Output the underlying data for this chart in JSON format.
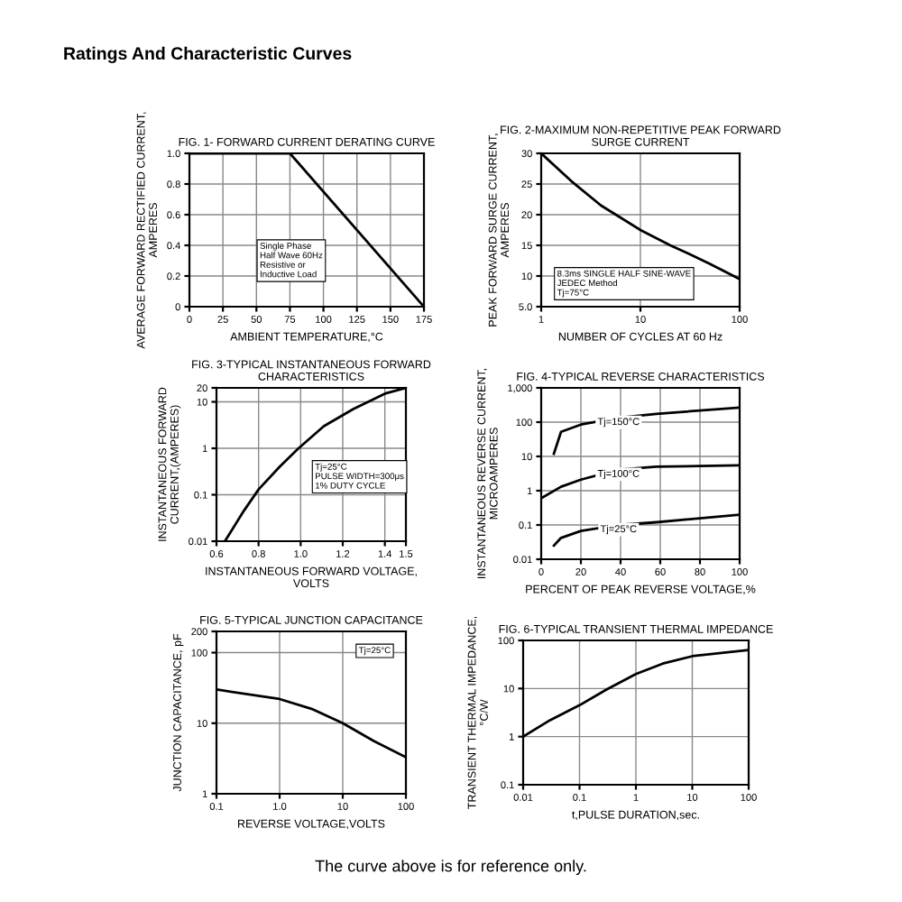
{
  "chart_data": [
    {
      "type": "other",
      "title": "Ratings And Characteristic Curves"
    },
    {
      "type": "line",
      "title": "FIG. 1- FORWARD CURRENT DERATING CURVE",
      "xlabel": "AMBIENT TEMPERATURE,°C",
      "ylabel": "AVERAGE FORWARD RECTIFIED CURRENT,\nAMPERES",
      "series": [
        {
          "color": "#000000",
          "x": [
            0,
            75,
            175
          ],
          "values": [
            1.0,
            1.0,
            0
          ]
        }
      ],
      "xlim": [
        0,
        175
      ],
      "ylim": [
        0,
        1.0
      ],
      "xticks": [
        0,
        25,
        50,
        75,
        100,
        125,
        150,
        175
      ],
      "yticks": [
        0,
        0.2,
        0.4,
        0.6,
        0.8,
        {
          "value": 1,
          "label": "1.0"
        }
      ],
      "grid": true,
      "line_style": "solid",
      "annotations": [
        "Single Phase\nHalf Wave 60Hz\nResistive or\nInductive Load"
      ]
    },
    {
      "type": "line",
      "title": "FIG. 2-MAXIMUM NON-REPETITIVE PEAK FORWARD\nSURGE CURRENT",
      "xlabel": "NUMBER OF CYCLES AT 60 Hz",
      "ylabel": "PEAK FORWARD SURGE CURRENT,\nAMPERES",
      "series": [
        {
          "color": "#000000",
          "x": [
            1,
            2,
            4,
            10,
            20,
            32,
            50,
            100
          ],
          "values": [
            30,
            25.5,
            21.5,
            17.5,
            15,
            13.5,
            12,
            9.5
          ]
        }
      ],
      "log": "x",
      "xlim": [
        1,
        100
      ],
      "ylim": [
        5.0,
        30
      ],
      "xticks": [
        1,
        10,
        100
      ],
      "yticks": [
        {
          "value": 5,
          "label": "5.0"
        },
        10,
        15,
        20,
        25,
        30
      ],
      "grid": true,
      "line_style": "solid",
      "annotations": [
        "8.3ms SINGLE HALF SINE-WAVE\nJEDEC Method\nTj=75°C"
      ]
    },
    {
      "type": "line",
      "title": "FIG. 3-TYPICAL INSTANTANEOUS FORWARD\nCHARACTERISTICS",
      "xlabel": "INSTANTANEOUS FORWARD VOLTAGE,\nVOLTS",
      "ylabel": "INSTANTANEOUS FORWARD\nCURRENT,(AMPERES)",
      "series": [
        {
          "color": "#000000",
          "x": [
            0.64,
            0.73,
            0.8,
            0.9,
            0.99,
            1.11,
            1.25,
            1.4,
            1.5
          ],
          "values": [
            0.01,
            0.045,
            0.13,
            0.4,
            1.0,
            3,
            7,
            15,
            20
          ]
        }
      ],
      "log": "y",
      "xlim": [
        0.6,
        1.5
      ],
      "ylim": [
        0.01,
        20
      ],
      "xticks": [
        0.6,
        0.8,
        {
          "value": 1,
          "label": "1.0"
        },
        1.2,
        1.4,
        1.5
      ],
      "yticks": [
        0.01,
        0.1,
        1,
        10,
        20
      ],
      "grid": true,
      "line_style": "solid",
      "annotations": [
        "Tj=25°C\nPULSE WIDTH=300μs\n1% DUTY CYCLE"
      ]
    },
    {
      "type": "line",
      "title": "FIG. 4-TYPICAL REVERSE CHARACTERISTICS",
      "xlabel": "PERCENT OF PEAK REVERSE VOLTAGE,%",
      "ylabel": "INSTANTANEOUS REVERSE CURRENT,\nMICROAMPERES",
      "series": [
        {
          "name": "Tj=150°C",
          "color": "#000000",
          "x": [
            6.4,
            10,
            20,
            39,
            58,
            100
          ],
          "values": [
            12,
            52,
            85,
            135,
            175,
            265
          ]
        },
        {
          "name": "Tj=100°C",
          "color": "#000000",
          "x": [
            0,
            10,
            20,
            39,
            58,
            100
          ],
          "values": [
            0.6,
            1.3,
            2.1,
            4.1,
            5,
            5.5
          ]
        },
        {
          "name": "Tj=25°C",
          "color": "#000000",
          "x": [
            6.4,
            10,
            20,
            39,
            58,
            100
          ],
          "values": [
            0.025,
            0.042,
            0.067,
            0.1,
            0.12,
            0.2
          ]
        }
      ],
      "log": "y",
      "xlim": [
        0,
        100
      ],
      "ylim": [
        0.01,
        1000
      ],
      "xticks": [
        0,
        20,
        40,
        60,
        80,
        100
      ],
      "yticks": [
        0.01,
        0.1,
        1,
        10,
        100,
        {
          "value": 1000,
          "label": "1,000"
        }
      ],
      "grid": true,
      "line_style": "solid"
    },
    {
      "type": "line",
      "title": "FIG. 5-TYPICAL JUNCTION CAPACITANCE",
      "xlabel": "REVERSE VOLTAGE,VOLTS",
      "ylabel": "JUNCTION CAPACITANCE, pF",
      "series": [
        {
          "color": "#000000",
          "x": [
            0.1,
            1,
            3.2,
            10,
            31,
            100
          ],
          "values": [
            30,
            22,
            16,
            10,
            5.6,
            3.3
          ]
        }
      ],
      "log": "xy",
      "xlim": [
        0.1,
        100
      ],
      "ylim": [
        1,
        200
      ],
      "xticks": [
        0.1,
        {
          "value": 1,
          "label": "1.0"
        },
        10,
        100
      ],
      "yticks": [
        1,
        10,
        100,
        200
      ],
      "grid": true,
      "line_style": "solid",
      "annotations": [
        "Tj=25°C"
      ]
    },
    {
      "type": "line",
      "title": "FIG. 6-TYPICAL TRANSIENT THERMAL IMPEDANCE",
      "xlabel": "t,PULSE DURATION,sec.",
      "ylabel": "TRANSIENT THERMAL IMPEDANCE,\n°C/W",
      "series": [
        {
          "color": "#000000",
          "x": [
            0.01,
            0.03,
            0.1,
            0.3,
            1,
            3,
            10,
            100
          ],
          "values": [
            1,
            2.2,
            4.5,
            9.5,
            20,
            33,
            47,
            63
          ]
        }
      ],
      "log": "xy",
      "xlim": [
        0.01,
        100
      ],
      "ylim": [
        0.1,
        100
      ],
      "xticks": [
        0.01,
        0.1,
        1,
        10,
        100
      ],
      "yticks": [
        0.1,
        1,
        10,
        100
      ],
      "grid": true,
      "line_style": "solid"
    },
    {
      "type": "other",
      "annotations": [
        "The curve above is for reference only."
      ]
    }
  ]
}
